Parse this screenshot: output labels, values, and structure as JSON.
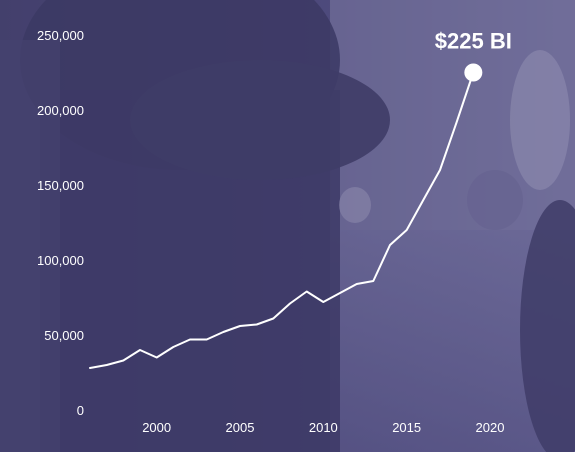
{
  "chart_data": {
    "type": "line",
    "title": "",
    "xlabel": "",
    "ylabel": "",
    "ylim": [
      0,
      250000
    ],
    "xlim": [
      1996,
      2020
    ],
    "grid": false,
    "legend": "none",
    "y_ticks": [
      {
        "value": 0,
        "label": "0"
      },
      {
        "value": 50000,
        "label": "50,000"
      },
      {
        "value": 100000,
        "label": "100,000"
      },
      {
        "value": 150000,
        "label": "150,000"
      },
      {
        "value": 200000,
        "label": "200,000"
      },
      {
        "value": 250000,
        "label": "250,000"
      }
    ],
    "x_ticks": [
      {
        "value": 2000,
        "label": "2000"
      },
      {
        "value": 2005,
        "label": "2005"
      },
      {
        "value": 2010,
        "label": "2010"
      },
      {
        "value": 2015,
        "label": "2015"
      },
      {
        "value": 2020,
        "label": "2020"
      }
    ],
    "series": [
      {
        "color": "#ffffff",
        "x": [
          1996,
          1997,
          1998,
          1999,
          2000,
          2001,
          2002,
          2003,
          2004,
          2005,
          2006,
          2007,
          2008,
          2009,
          2010,
          2011,
          2012,
          2013,
          2014,
          2015,
          2016,
          2017,
          2018,
          2019
        ],
        "y": [
          28000,
          30000,
          33000,
          40000,
          35000,
          42000,
          47000,
          47000,
          52000,
          56000,
          57000,
          61000,
          71000,
          79000,
          72000,
          78000,
          84000,
          86000,
          110000,
          120000,
          140000,
          160000,
          192000,
          225000
        ]
      }
    ],
    "annotation": {
      "text": "$225 BI",
      "x": 2019,
      "y": 225000
    }
  },
  "colors": {
    "overlay": "#5a5790",
    "line": "#ffffff",
    "text": "#ffffff"
  }
}
